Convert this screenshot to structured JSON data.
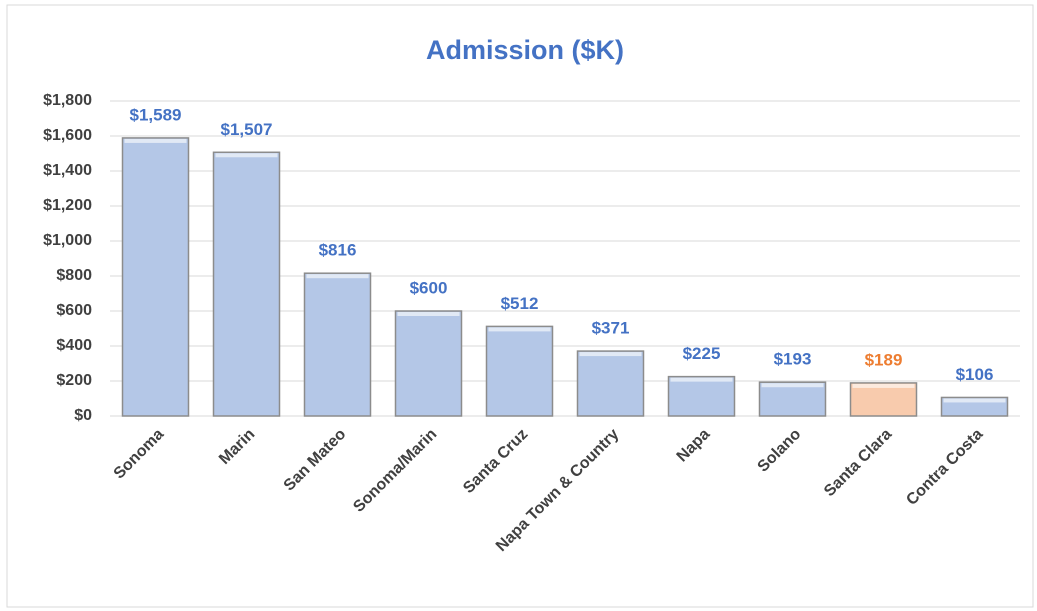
{
  "chart_data": {
    "type": "bar",
    "title": "Admission ($K)",
    "categories": [
      "Sonoma",
      "Marin",
      "San Mateo",
      "Sonoma/Marin",
      "Santa Cruz",
      "Napa Town & Country",
      "Napa",
      "Solano",
      "Santa Clara",
      "Contra Costa"
    ],
    "values": [
      1589,
      1507,
      816,
      600,
      512,
      371,
      225,
      193,
      189,
      106
    ],
    "value_labels": [
      "$1,589",
      "$1,507",
      "$816",
      "$600",
      "$512",
      "$371",
      "$225",
      "$193",
      "$189",
      "$106"
    ],
    "colors": [
      "#b4c7e7",
      "#b4c7e7",
      "#b4c7e7",
      "#b4c7e7",
      "#b4c7e7",
      "#b4c7e7",
      "#b4c7e7",
      "#b4c7e7",
      "#f8cbad",
      "#b4c7e7"
    ],
    "label_colors": [
      "#4472c4",
      "#4472c4",
      "#4472c4",
      "#4472c4",
      "#4472c4",
      "#4472c4",
      "#4472c4",
      "#4472c4",
      "#ed7d31",
      "#4472c4"
    ],
    "ylim": [
      0,
      1800
    ],
    "yticks": [
      {
        "value": 0,
        "label": "$0"
      },
      {
        "value": 200,
        "label": "$200"
      },
      {
        "value": 400,
        "label": "$400"
      },
      {
        "value": 600,
        "label": "$600"
      },
      {
        "value": 800,
        "label": "$800"
      },
      {
        "value": 1000,
        "label": "$1,000"
      },
      {
        "value": 1200,
        "label": "$1,200"
      },
      {
        "value": 1400,
        "label": "$1,400"
      },
      {
        "value": 1600,
        "label": "$1,600"
      },
      {
        "value": 1800,
        "label": "$1,800"
      }
    ],
    "grid": true
  }
}
